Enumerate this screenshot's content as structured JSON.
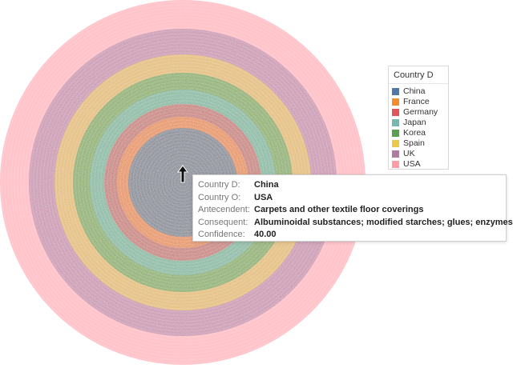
{
  "legend": {
    "title": "Country D",
    "items": [
      {
        "label": "China",
        "color": "#4e79a7"
      },
      {
        "label": "France",
        "color": "#f28e2b"
      },
      {
        "label": "Germany",
        "color": "#e15759"
      },
      {
        "label": "Japan",
        "color": "#76b7b2"
      },
      {
        "label": "Korea",
        "color": "#59a14f"
      },
      {
        "label": "Spain",
        "color": "#edc948"
      },
      {
        "label": "UK",
        "color": "#b07aa1"
      },
      {
        "label": "USA",
        "color": "#ff9da7"
      }
    ]
  },
  "chart": {
    "type": "concentric-rings",
    "center_color": "#4e79a7",
    "ring_order": [
      "China",
      "France",
      "Germany",
      "Japan",
      "Korea",
      "Spain",
      "UK",
      "USA"
    ]
  },
  "tooltip": {
    "rows": [
      {
        "label": "Country D:",
        "value": "China"
      },
      {
        "label": "Country O:",
        "value": "USA"
      },
      {
        "label": "Antecendent:",
        "value": "Carpets and other textile floor coverings"
      },
      {
        "label": "Consequent:",
        "value": "Albuminoidal substances; modified starches; glues; enzymes"
      },
      {
        "label": "Confidence:",
        "value": "40.00"
      }
    ]
  },
  "cursor": {
    "icon": "arrow-pointer-icon"
  }
}
